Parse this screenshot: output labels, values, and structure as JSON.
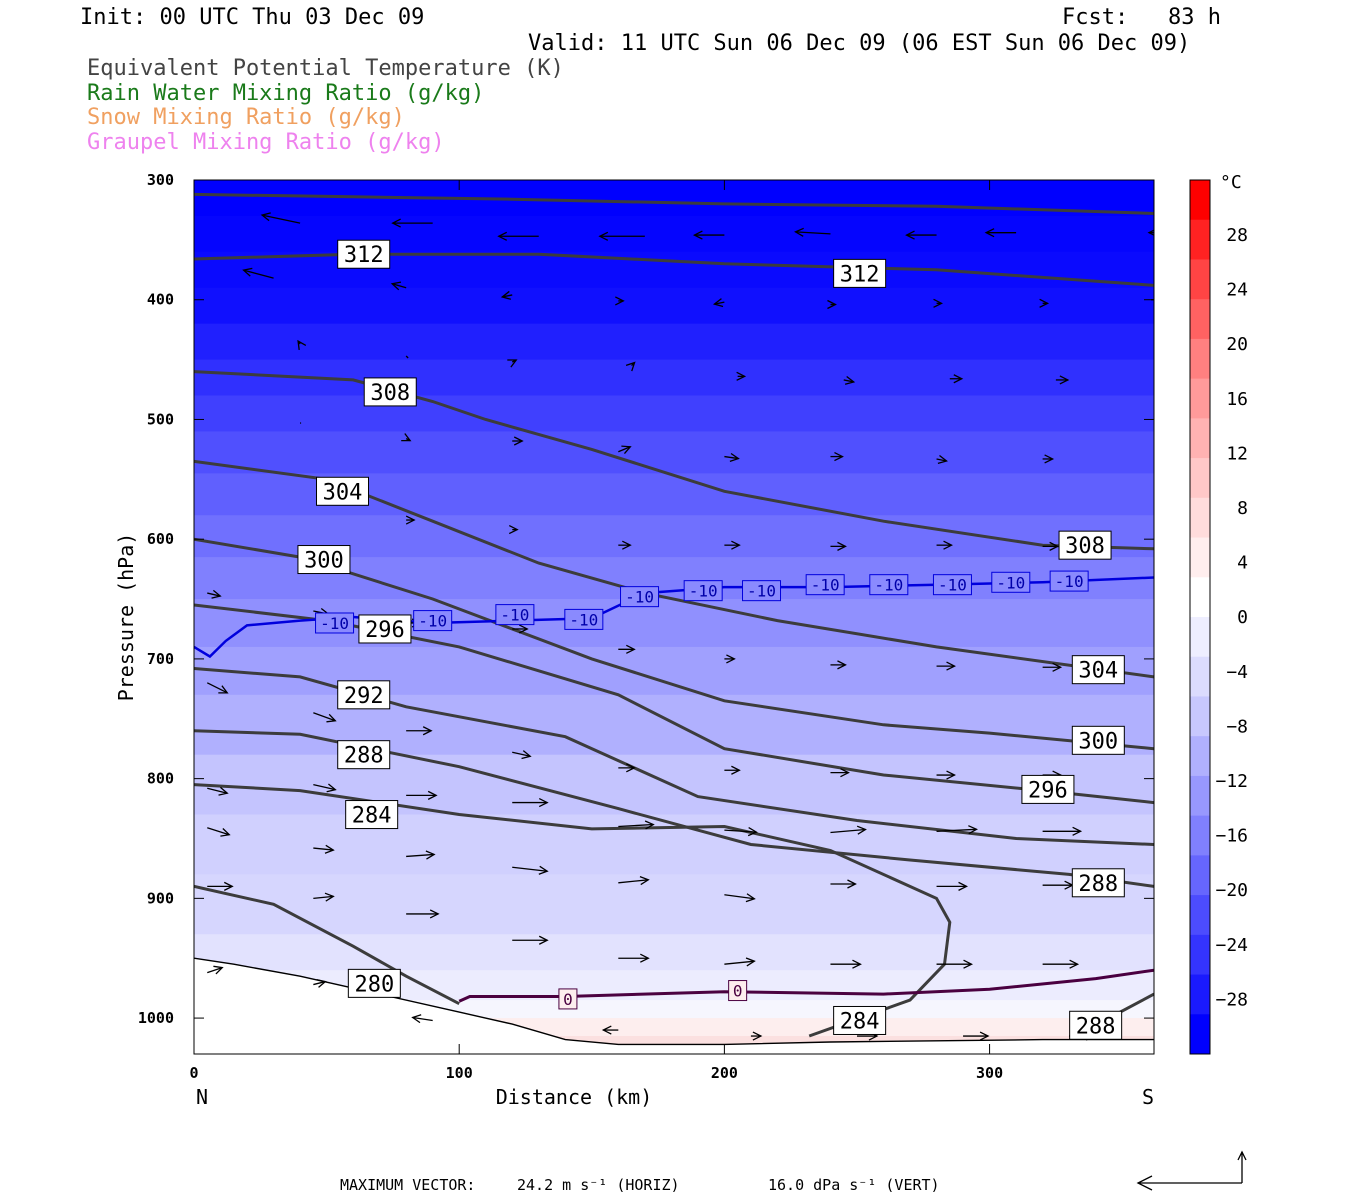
{
  "header": {
    "init": "Init: 00 UTC Thu 03 Dec 09",
    "fcst": "Fcst:   83 h",
    "valid": "Valid: 11 UTC Sun 06 Dec 09 (06 EST Sun 06 Dec 09)"
  },
  "legend": [
    {
      "label": "Equivalent Potential Temperature (K)",
      "color": "#444444"
    },
    {
      "label": "Rain Water Mixing Ratio (g/kg)",
      "color": "#1a7a1a"
    },
    {
      "label": "Snow Mixing Ratio (g/kg)",
      "color": "#f0a060"
    },
    {
      "label": "Graupel Mixing Ratio (g/kg)",
      "color": "#ee82ee"
    }
  ],
  "footer": {
    "max_vector_label": "MAXIMUM VECTOR:",
    "horiz": "24.2 m s⁻¹ (HORIZ)",
    "vert": "16.0 dPa s⁻¹ (VERT)"
  },
  "chart_data": {
    "type": "cross-section",
    "xlabel": "Distance (km)",
    "ylabel": "Pressure (hPa)",
    "xlim": [
      0,
      362
    ],
    "ylim": [
      1030,
      300
    ],
    "x_ticks": [
      0,
      100,
      200,
      300
    ],
    "y_ticks": [
      300,
      400,
      500,
      600,
      700,
      800,
      900,
      1000
    ],
    "x_end_labels": [
      "N",
      "S"
    ],
    "colorbar": {
      "unit": "°C",
      "ticks": [
        28,
        24,
        20,
        16,
        12,
        8,
        4,
        0,
        -4,
        -8,
        -12,
        -16,
        -20,
        -24,
        -28
      ],
      "bands": [
        "#fe0000",
        "#ff2222",
        "#ff4444",
        "#ff6262",
        "#ff8080",
        "#ff9a9a",
        "#ffb2b2",
        "#ffc8c8",
        "#ffdcdc",
        "#ffeeee",
        "#ffffff",
        "#eeeeff",
        "#dcdcfe",
        "#c8c8fe",
        "#b0b0fe",
        "#9898fe",
        "#8080fe",
        "#6666fe",
        "#4c4cfe",
        "#3434fe",
        "#1a1afe",
        "#0000fe"
      ]
    },
    "theta_e_contours": [
      {
        "level": 312,
        "points": [
          [
            0,
            312
          ],
          [
            60,
            314
          ],
          [
            120,
            316
          ],
          [
            200,
            320
          ],
          [
            280,
            322
          ],
          [
            362,
            328
          ]
        ]
      },
      {
        "level": 312,
        "points": [
          [
            0,
            366
          ],
          [
            60,
            362
          ],
          [
            130,
            362
          ],
          [
            200,
            370
          ],
          [
            280,
            375
          ],
          [
            362,
            388
          ]
        ]
      },
      {
        "level": 308,
        "points": [
          [
            0,
            460
          ],
          [
            60,
            467
          ],
          [
            90,
            485
          ],
          [
            110,
            500
          ],
          [
            150,
            525
          ],
          [
            200,
            560
          ],
          [
            260,
            585
          ],
          [
            320,
            605
          ],
          [
            362,
            608
          ]
        ]
      },
      {
        "level": 304,
        "points": [
          [
            0,
            535
          ],
          [
            50,
            550
          ],
          [
            90,
            585
          ],
          [
            130,
            620
          ],
          [
            170,
            645
          ],
          [
            220,
            668
          ],
          [
            280,
            690
          ],
          [
            362,
            715
          ]
        ]
      },
      {
        "level": 300,
        "points": [
          [
            0,
            600
          ],
          [
            40,
            615
          ],
          [
            90,
            650
          ],
          [
            150,
            700
          ],
          [
            200,
            735
          ],
          [
            260,
            755
          ],
          [
            300,
            762
          ],
          [
            362,
            775
          ]
        ]
      },
      {
        "level": 296,
        "points": [
          [
            0,
            655
          ],
          [
            50,
            668
          ],
          [
            100,
            690
          ],
          [
            160,
            730
          ],
          [
            200,
            775
          ],
          [
            260,
            797
          ],
          [
            320,
            810
          ],
          [
            362,
            820
          ]
        ]
      },
      {
        "level": 292,
        "points": [
          [
            0,
            708
          ],
          [
            40,
            715
          ],
          [
            80,
            740
          ],
          [
            140,
            765
          ],
          [
            190,
            815
          ],
          [
            250,
            835
          ],
          [
            310,
            850
          ],
          [
            362,
            855
          ]
        ]
      },
      {
        "level": 288,
        "points": [
          [
            0,
            760
          ],
          [
            40,
            763
          ],
          [
            100,
            790
          ],
          [
            160,
            825
          ],
          [
            210,
            855
          ],
          [
            270,
            868
          ],
          [
            330,
            880
          ],
          [
            362,
            890
          ]
        ]
      },
      {
        "level": 284,
        "points": [
          [
            0,
            805
          ],
          [
            40,
            810
          ],
          [
            100,
            830
          ],
          [
            150,
            842
          ],
          [
            200,
            840
          ],
          [
            240,
            860
          ],
          [
            280,
            900
          ],
          [
            285,
            920
          ],
          [
            283,
            955
          ],
          [
            270,
            985
          ],
          [
            232,
            1015
          ]
        ]
      },
      {
        "level": 280,
        "points": [
          [
            0,
            890
          ],
          [
            30,
            905
          ],
          [
            60,
            940
          ],
          [
            80,
            965
          ],
          [
            100,
            988
          ]
        ]
      },
      {
        "level": 288,
        "points": [
          [
            345,
            1000
          ],
          [
            362,
            980
          ]
        ]
      }
    ],
    "theta_e_labels": [
      {
        "text": "312",
        "x": 64,
        "p": 362
      },
      {
        "text": "312",
        "x": 251,
        "p": 378
      },
      {
        "text": "308",
        "x": 74,
        "p": 477
      },
      {
        "text": "308",
        "x": 336,
        "p": 605
      },
      {
        "text": "304",
        "x": 56,
        "p": 560
      },
      {
        "text": "304",
        "x": 341,
        "p": 709
      },
      {
        "text": "300",
        "x": 49,
        "p": 617
      },
      {
        "text": "300",
        "x": 341,
        "p": 768
      },
      {
        "text": "296",
        "x": 72,
        "p": 675
      },
      {
        "text": "296",
        "x": 322,
        "p": 809
      },
      {
        "text": "292",
        "x": 64,
        "p": 730
      },
      {
        "text": "288",
        "x": 64,
        "p": 780
      },
      {
        "text": "288",
        "x": 341,
        "p": 887
      },
      {
        "text": "284",
        "x": 67,
        "p": 830
      },
      {
        "text": "284",
        "x": 251,
        "p": 1002
      },
      {
        "text": "280",
        "x": 68,
        "p": 971
      },
      {
        "text": "288",
        "x": 340,
        "p": 1006
      }
    ],
    "isotherms": [
      {
        "level": -10,
        "color": "#0000dd",
        "points": [
          [
            0,
            690
          ],
          [
            6,
            698
          ],
          [
            12,
            685
          ],
          [
            20,
            672
          ],
          [
            40,
            668
          ],
          [
            60,
            665
          ],
          [
            90,
            670
          ],
          [
            120,
            668
          ],
          [
            150,
            666
          ],
          [
            170,
            645
          ],
          [
            200,
            640
          ],
          [
            240,
            640
          ],
          [
            280,
            638
          ],
          [
            320,
            636
          ],
          [
            362,
            632
          ]
        ],
        "labels": [
          {
            "text": "-10",
            "x": 53,
            "p": 670
          },
          {
            "text": "-10",
            "x": 90,
            "p": 668
          },
          {
            "text": "-10",
            "x": 121,
            "p": 663
          },
          {
            "text": "-10",
            "x": 147,
            "p": 667
          },
          {
            "text": "-10",
            "x": 168,
            "p": 648
          },
          {
            "text": "-10",
            "x": 192,
            "p": 643
          },
          {
            "text": "-10",
            "x": 214,
            "p": 643
          },
          {
            "text": "-10",
            "x": 238,
            "p": 638
          },
          {
            "text": "-10",
            "x": 262,
            "p": 638
          },
          {
            "text": "-10",
            "x": 286,
            "p": 638
          },
          {
            "text": "-10",
            "x": 308,
            "p": 636
          },
          {
            "text": "-10",
            "x": 330,
            "p": 635
          }
        ]
      },
      {
        "level": 0,
        "color": "#4a0040",
        "points": [
          [
            100,
            986
          ],
          [
            104,
            982
          ],
          [
            140,
            982
          ],
          [
            200,
            978
          ],
          [
            260,
            980
          ],
          [
            300,
            976
          ],
          [
            340,
            967
          ],
          [
            362,
            960
          ]
        ],
        "labels": [
          {
            "text": "0",
            "x": 141,
            "p": 984
          },
          {
            "text": "0",
            "x": 205,
            "p": 977
          }
        ]
      }
    ],
    "wind_vectors": [
      [
        40,
        336,
        -38,
        -8
      ],
      [
        90,
        336,
        -40,
        0
      ],
      [
        130,
        347,
        -40,
        0
      ],
      [
        170,
        347,
        -45,
        0
      ],
      [
        200,
        346,
        -30,
        0
      ],
      [
        240,
        345,
        -35,
        -2
      ],
      [
        280,
        346,
        -30,
        0
      ],
      [
        310,
        344,
        -30,
        0
      ],
      [
        362,
        344,
        -5,
        0
      ],
      [
        30,
        382,
        -30,
        -8
      ],
      [
        80,
        390,
        -14,
        -4
      ],
      [
        120,
        396,
        -10,
        2
      ],
      [
        160,
        401,
        5,
        0
      ],
      [
        200,
        402,
        -10,
        2
      ],
      [
        240,
        404,
        5,
        0
      ],
      [
        280,
        403,
        5,
        0
      ],
      [
        320,
        403,
        5,
        0
      ],
      [
        362,
        400,
        -3,
        0
      ],
      [
        40,
        437,
        -2,
        -3
      ],
      [
        80,
        447,
        2,
        2
      ],
      [
        120,
        452,
        4,
        -2
      ],
      [
        165,
        455,
        3,
        -3
      ],
      [
        205,
        464,
        7,
        0
      ],
      [
        245,
        467,
        10,
        2
      ],
      [
        285,
        466,
        12,
        0
      ],
      [
        325,
        467,
        12,
        0
      ],
      [
        40,
        503,
        1,
        0
      ],
      [
        80,
        516,
        4,
        2
      ],
      [
        120,
        518,
        10,
        0
      ],
      [
        160,
        527,
        12,
        -5
      ],
      [
        200,
        531,
        14,
        2
      ],
      [
        240,
        531,
        12,
        0
      ],
      [
        280,
        533,
        10,
        2
      ],
      [
        320,
        533,
        10,
        0
      ],
      [
        40,
        571,
        0,
        0
      ],
      [
        80,
        584,
        8,
        0
      ],
      [
        120,
        592,
        5,
        0
      ],
      [
        160,
        605,
        12,
        0
      ],
      [
        200,
        605,
        15,
        0
      ],
      [
        240,
        606,
        15,
        0
      ],
      [
        280,
        605,
        15,
        0
      ],
      [
        320,
        606,
        15,
        0
      ],
      [
        5,
        645,
        13,
        3
      ],
      [
        45,
        660,
        15,
        3
      ],
      [
        80,
        670,
        14,
        0
      ],
      [
        120,
        675,
        15,
        0
      ],
      [
        160,
        692,
        16,
        0
      ],
      [
        200,
        700,
        10,
        0
      ],
      [
        240,
        705,
        15,
        0
      ],
      [
        280,
        706,
        18,
        0
      ],
      [
        320,
        707,
        18,
        0
      ],
      [
        5,
        720,
        20,
        10
      ],
      [
        45,
        745,
        22,
        8
      ],
      [
        80,
        760,
        25,
        0
      ],
      [
        120,
        778,
        18,
        4
      ],
      [
        160,
        791,
        16,
        0
      ],
      [
        200,
        793,
        15,
        0
      ],
      [
        240,
        795,
        18,
        0
      ],
      [
        280,
        797,
        18,
        0
      ],
      [
        320,
        797,
        18,
        0
      ],
      [
        5,
        808,
        20,
        5
      ],
      [
        45,
        805,
        22,
        5
      ],
      [
        80,
        814,
        30,
        0
      ],
      [
        120,
        820,
        35,
        0
      ],
      [
        160,
        840,
        35,
        -2
      ],
      [
        200,
        843,
        32,
        2
      ],
      [
        240,
        845,
        35,
        -3
      ],
      [
        280,
        844,
        40,
        -2
      ],
      [
        320,
        844,
        38,
        0
      ],
      [
        5,
        841,
        22,
        7
      ],
      [
        45,
        858,
        20,
        2
      ],
      [
        80,
        865,
        28,
        -2
      ],
      [
        120,
        874,
        35,
        4
      ],
      [
        160,
        887,
        30,
        -3
      ],
      [
        200,
        897,
        30,
        4
      ],
      [
        240,
        888,
        25,
        0
      ],
      [
        280,
        890,
        30,
        0
      ],
      [
        320,
        889,
        30,
        0
      ],
      [
        5,
        890,
        25,
        0
      ],
      [
        45,
        900,
        20,
        -2
      ],
      [
        80,
        913,
        32,
        0
      ],
      [
        120,
        935,
        35,
        0
      ],
      [
        160,
        950,
        30,
        0
      ],
      [
        200,
        955,
        30,
        -3
      ],
      [
        240,
        955,
        30,
        0
      ],
      [
        280,
        955,
        35,
        0
      ],
      [
        320,
        955,
        35,
        0
      ],
      [
        5,
        962,
        15,
        -5
      ],
      [
        45,
        972,
        12,
        -3
      ],
      [
        90,
        1002,
        -20,
        -3
      ],
      [
        160,
        1010,
        -15,
        0
      ],
      [
        210,
        1015,
        10,
        0
      ],
      [
        250,
        1015,
        20,
        0
      ],
      [
        290,
        1015,
        25,
        0
      ],
      [
        330,
        1015,
        25,
        0
      ]
    ],
    "terrain": [
      [
        0,
        950
      ],
      [
        15,
        955
      ],
      [
        40,
        965
      ],
      [
        70,
        980
      ],
      [
        100,
        995
      ],
      [
        120,
        1005
      ],
      [
        140,
        1018
      ],
      [
        160,
        1022
      ],
      [
        200,
        1022
      ],
      [
        240,
        1020
      ],
      [
        280,
        1019
      ],
      [
        320,
        1018
      ],
      [
        362,
        1018
      ]
    ]
  }
}
